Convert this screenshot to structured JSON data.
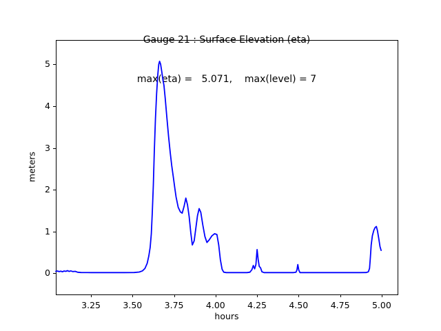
{
  "figure": {
    "title_line1": "Gauge 21 : Surface Elevation (eta)",
    "title_line2": "max(eta) =   5.071,    max(level) = 7"
  },
  "chart_data": {
    "type": "line",
    "title": "Gauge 21 : Surface Elevation (eta)",
    "subtitle": "max(eta) =   5.071,    max(level) = 7",
    "xlabel": "hours",
    "ylabel": "meters",
    "grid": false,
    "legend": null,
    "line_color": "#0000ff",
    "line_width": 1.8,
    "axis_color": "#000000",
    "xlim": [
      3.038,
      5.096
    ],
    "ylim": [
      -0.503,
      5.58
    ],
    "xticks": [
      3.25,
      3.5,
      3.75,
      4.0,
      4.25,
      4.5,
      4.75,
      5.0
    ],
    "xtick_labels": [
      "3.25",
      "3.50",
      "3.75",
      "4.00",
      "4.25",
      "4.50",
      "4.75",
      "5.00"
    ],
    "yticks": [
      0,
      1,
      2,
      3,
      4,
      5
    ],
    "ytick_labels": [
      "0",
      "1",
      "2",
      "3",
      "4",
      "5"
    ],
    "max_eta": 5.071,
    "max_level": 7,
    "series": [
      {
        "name": "eta",
        "points": [
          [
            3.038,
            0.05
          ],
          [
            3.048,
            0.058
          ],
          [
            3.058,
            0.042
          ],
          [
            3.068,
            0.055
          ],
          [
            3.078,
            0.04
          ],
          [
            3.088,
            0.058
          ],
          [
            3.098,
            0.05
          ],
          [
            3.108,
            0.065
          ],
          [
            3.118,
            0.048
          ],
          [
            3.128,
            0.06
          ],
          [
            3.14,
            0.045
          ],
          [
            3.155,
            0.05
          ],
          [
            3.17,
            0.028
          ],
          [
            3.19,
            0.022
          ],
          [
            3.25,
            0.02
          ],
          [
            3.35,
            0.02
          ],
          [
            3.45,
            0.02
          ],
          [
            3.51,
            0.022
          ],
          [
            3.54,
            0.032
          ],
          [
            3.56,
            0.06
          ],
          [
            3.575,
            0.12
          ],
          [
            3.588,
            0.24
          ],
          [
            3.598,
            0.42
          ],
          [
            3.606,
            0.62
          ],
          [
            3.613,
            0.95
          ],
          [
            3.619,
            1.45
          ],
          [
            3.625,
            2.1
          ],
          [
            3.631,
            2.9
          ],
          [
            3.638,
            3.7
          ],
          [
            3.645,
            4.3
          ],
          [
            3.652,
            4.75
          ],
          [
            3.658,
            5.0
          ],
          [
            3.663,
            5.071
          ],
          [
            3.669,
            5.0
          ],
          [
            3.676,
            4.82
          ],
          [
            3.683,
            4.62
          ],
          [
            3.689,
            4.5
          ],
          [
            3.697,
            4.18
          ],
          [
            3.707,
            3.72
          ],
          [
            3.717,
            3.28
          ],
          [
            3.727,
            2.88
          ],
          [
            3.736,
            2.58
          ],
          [
            3.745,
            2.32
          ],
          [
            3.754,
            2.05
          ],
          [
            3.762,
            1.83
          ],
          [
            3.775,
            1.58
          ],
          [
            3.788,
            1.47
          ],
          [
            3.799,
            1.44
          ],
          [
            3.81,
            1.6
          ],
          [
            3.821,
            1.8
          ],
          [
            3.831,
            1.64
          ],
          [
            3.841,
            1.36
          ],
          [
            3.851,
            0.97
          ],
          [
            3.86,
            0.68
          ],
          [
            3.871,
            0.78
          ],
          [
            3.881,
            1.08
          ],
          [
            3.891,
            1.38
          ],
          [
            3.901,
            1.55
          ],
          [
            3.911,
            1.46
          ],
          [
            3.923,
            1.16
          ],
          [
            3.936,
            0.88
          ],
          [
            3.948,
            0.74
          ],
          [
            3.961,
            0.8
          ],
          [
            3.978,
            0.9
          ],
          [
            3.994,
            0.95
          ],
          [
            4.008,
            0.93
          ],
          [
            4.019,
            0.68
          ],
          [
            4.029,
            0.33
          ],
          [
            4.039,
            0.1
          ],
          [
            4.049,
            0.03
          ],
          [
            4.065,
            0.02
          ],
          [
            4.13,
            0.02
          ],
          [
            4.19,
            0.02
          ],
          [
            4.207,
            0.03
          ],
          [
            4.219,
            0.09
          ],
          [
            4.227,
            0.19
          ],
          [
            4.235,
            0.11
          ],
          [
            4.243,
            0.21
          ],
          [
            4.25,
            0.57
          ],
          [
            4.256,
            0.34
          ],
          [
            4.263,
            0.17
          ],
          [
            4.271,
            0.13
          ],
          [
            4.279,
            0.04
          ],
          [
            4.292,
            0.02
          ],
          [
            4.38,
            0.02
          ],
          [
            4.47,
            0.02
          ],
          [
            4.484,
            0.03
          ],
          [
            4.49,
            0.08
          ],
          [
            4.495,
            0.21
          ],
          [
            4.501,
            0.08
          ],
          [
            4.508,
            0.02
          ],
          [
            4.6,
            0.02
          ],
          [
            4.75,
            0.02
          ],
          [
            4.87,
            0.02
          ],
          [
            4.908,
            0.022
          ],
          [
            4.92,
            0.04
          ],
          [
            4.927,
            0.12
          ],
          [
            4.932,
            0.38
          ],
          [
            4.937,
            0.68
          ],
          [
            4.944,
            0.9
          ],
          [
            4.953,
            1.03
          ],
          [
            4.961,
            1.1
          ],
          [
            4.968,
            1.12
          ],
          [
            4.975,
            1.02
          ],
          [
            4.983,
            0.82
          ],
          [
            4.99,
            0.64
          ],
          [
            4.997,
            0.55
          ]
        ]
      }
    ]
  }
}
